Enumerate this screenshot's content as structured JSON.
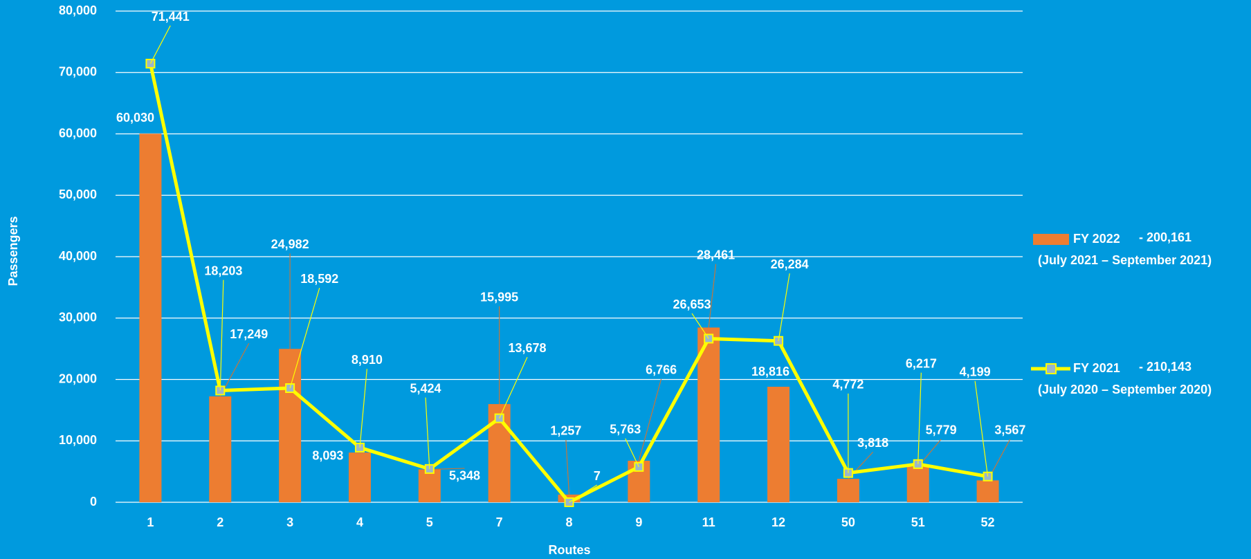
{
  "chart_data": {
    "type": "bar_line",
    "x_label": "Routes",
    "y_label": "Passengers",
    "categories": [
      "1",
      "2",
      "3",
      "4",
      "5",
      "7",
      "8",
      "9",
      "11",
      "12",
      "50",
      "51",
      "52"
    ],
    "ylim": [
      0,
      80000
    ],
    "yticks": [
      0,
      {
        "value": 10000,
        "label": "10,000"
      },
      {
        "value": 20000,
        "label": "20,000"
      },
      {
        "value": 30000,
        "label": "30,000"
      },
      {
        "value": 40000,
        "label": "40,000"
      },
      {
        "value": 50000,
        "label": "50,000"
      },
      {
        "value": 60000,
        "label": "60,000"
      },
      {
        "value": 70000,
        "label": "70,000"
      },
      {
        "value": 80000,
        "label": "80,000"
      }
    ],
    "grid": true,
    "series": [
      {
        "name": "FY 2022",
        "kind": "bar",
        "color": "#ed7d31",
        "total": 200161,
        "total_label": "- 200,161",
        "period": "(July 2021 – September 2021)",
        "values": [
          60030,
          17249,
          24982,
          8093,
          5348,
          15995,
          1257,
          6766,
          28461,
          18816,
          3818,
          5779,
          3567
        ],
        "value_labels": [
          "60,030",
          "17,249",
          "24,982",
          "8,093",
          "5,348",
          "15,995",
          "1,257",
          "6,766",
          "28,461",
          "18,816",
          "3,818",
          "5,779",
          "3,567"
        ]
      },
      {
        "name": "FY 2021",
        "kind": "line",
        "color": "#ffff00",
        "total": 210143,
        "total_label": "- 210,143",
        "period": "(July 2020 – September 2020)",
        "values": [
          71441,
          18203,
          18592,
          8910,
          5424,
          13678,
          7,
          5763,
          26653,
          26284,
          4772,
          6217,
          4199
        ],
        "value_labels": [
          "71,441",
          "18,203",
          "18,592",
          "8,910",
          "5,424",
          "13,678",
          "7",
          "5,763",
          "26,653",
          "26,284",
          "4,772",
          "6,217",
          "4,199"
        ]
      }
    ]
  }
}
